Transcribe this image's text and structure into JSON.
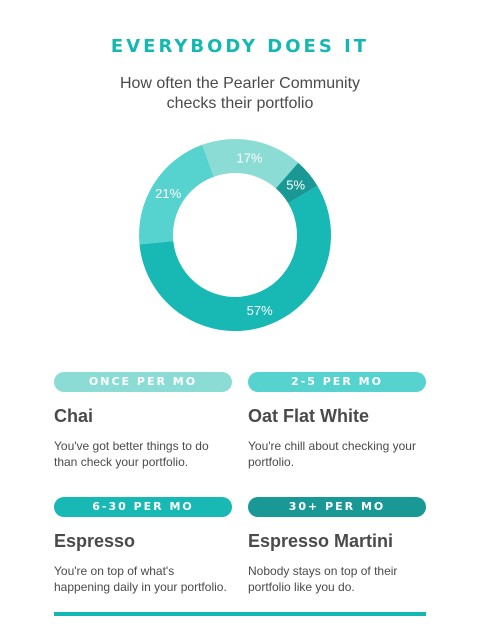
{
  "headline": "EVERYBODY DOES IT",
  "subtitle": {
    "line1": "How often the Pearler Community",
    "line2": "checks their portfolio"
  },
  "chart_data": {
    "type": "pie",
    "variant": "donut",
    "slices": [
      {
        "label": "Once per mo",
        "value": 17,
        "text": "17%",
        "color": "#8cdcd6"
      },
      {
        "label": "2-5 per mo",
        "value": 5,
        "text": "5%",
        "color": "#1a9895"
      },
      {
        "label": "6-30 per mo",
        "value": 57,
        "text": "57%",
        "color": "#18b8b5"
      },
      {
        "label": "30+ per mo",
        "value": 21,
        "text": "21%",
        "color": "#56d2cf"
      }
    ]
  },
  "cards": [
    {
      "pill": "ONCE PER MO",
      "pill_color": "#8cdcd6",
      "title": "Chai",
      "desc": "You've got better things to do than check your portfolio."
    },
    {
      "pill": "2-5 PER MO",
      "pill_color": "#56d2cf",
      "title": "Oat Flat White",
      "desc": "You're chill about checking your portfolio."
    },
    {
      "pill": "6-30 PER MO",
      "pill_color": "#18b8b5",
      "title": "Espresso",
      "desc": "You're on top of what's happening daily in your portfolio."
    },
    {
      "pill": "30+ PER MO",
      "pill_color": "#1a9895",
      "title": "Espresso Martini",
      "desc": "Nobody stays on top of their portfolio like you do."
    }
  ]
}
